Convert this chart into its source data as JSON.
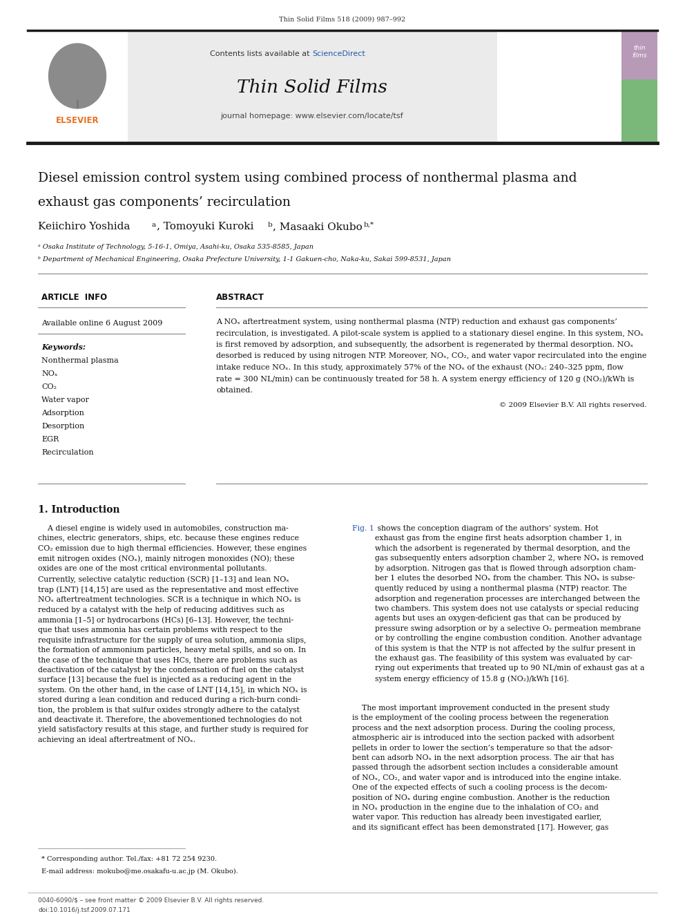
{
  "page_width": 9.92,
  "page_height": 13.23,
  "bg_color": "#ffffff",
  "top_journal_line": "Thin Solid Films 518 (2009) 987–992",
  "header_bg": "#e8e8e8",
  "sciencedirect_color": "#2255aa",
  "journal_title": "Thin Solid Films",
  "journal_homepage": "journal homepage: www.elsevier.com/locate/tsf",
  "elsevier_color": "#e87020",
  "thick_bar_color": "#1a1a1a",
  "article_title_line1": "Diesel emission control system using combined process of nonthermal plasma and",
  "article_title_line2": "exhaust gas components’ recirculation",
  "affil_a": "ᵃ Osaka Institute of Technology, 5-16-1, Omiya, Asahi-ku, Osaka 535-8585, Japan",
  "affil_b": "ᵇ Department of Mechanical Engineering, Osaka Prefecture University, 1-1 Gakuen-cho, Naka-ku, Sakai 599-8531, Japan",
  "section_article_info": "ARTICLE  INFO",
  "section_abstract": "ABSTRACT",
  "available_online": "Available online 6 August 2009",
  "keywords_label": "Keywords:",
  "keywords": [
    "Nonthermal plasma",
    "NOₓ",
    "CO₂",
    "Water vapor",
    "Adsorption",
    "Desorption",
    "EGR",
    "Recirculation"
  ],
  "copyright_text": "© 2009 Elsevier B.V. All rights reserved.",
  "intro_heading": "1. Introduction",
  "link_color": "#2255aa",
  "footnote_star": "* Corresponding author. Tel./fax: +81 72 254 9230.",
  "footnote_email": "E-mail address: mokubo@me.osakafu-u.ac.jp (M. Okubo).",
  "bottom_line1": "0040-6090/$ – see front matter © 2009 Elsevier B.V. All rights reserved.",
  "bottom_line2": "doi:10.1016/j.tsf.2009.07.171"
}
